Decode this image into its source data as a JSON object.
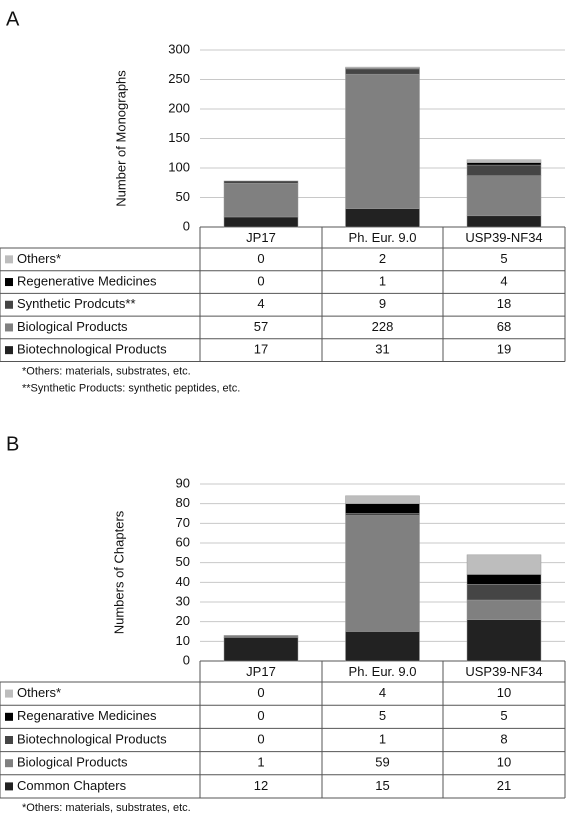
{
  "chart_data": [
    {
      "type": "bar",
      "stacked": true,
      "panel": "A",
      "ylabel": "Number  of Monographs",
      "categories": [
        "JP17",
        "Ph. Eur. 9.0",
        "USP39-NF34"
      ],
      "series": [
        {
          "name": "Biotechnological Products",
          "color": "#222222",
          "values": [
            17,
            31,
            19
          ]
        },
        {
          "name": "Biological Products",
          "color": "#808080",
          "values": [
            57,
            228,
            68
          ]
        },
        {
          "name": "Synthetic Prodcuts**",
          "color": "#454545",
          "values": [
            4,
            9,
            18
          ]
        },
        {
          "name": "Regenerative Medicines",
          "color": "#000000",
          "values": [
            0,
            1,
            4
          ]
        },
        {
          "name": "Others*",
          "color": "#bdbdbd",
          "values": [
            0,
            2,
            5
          ]
        }
      ],
      "ylim": [
        0,
        300
      ],
      "yticks": [
        0,
        50,
        100,
        150,
        200,
        250,
        300
      ],
      "grid": true,
      "footnotes": [
        "*Others: materials, substrates, etc.",
        "**Synthetic Products: synthetic peptides, etc."
      ]
    },
    {
      "type": "bar",
      "stacked": true,
      "panel": "B",
      "ylabel": "Numbers of Chapters",
      "categories": [
        "JP17",
        "Ph. Eur. 9.0",
        "USP39-NF34"
      ],
      "series": [
        {
          "name": "Common Chapters",
          "color": "#222222",
          "values": [
            12,
            15,
            21
          ]
        },
        {
          "name": "Biological Products",
          "color": "#808080",
          "values": [
            1,
            59,
            10
          ]
        },
        {
          "name": "Biotechnological Products",
          "color": "#454545",
          "values": [
            0,
            1,
            8
          ]
        },
        {
          "name": "Regenarative Medicines",
          "color": "#000000",
          "values": [
            0,
            5,
            5
          ]
        },
        {
          "name": "Others*",
          "color": "#bdbdbd",
          "values": [
            0,
            4,
            10
          ]
        }
      ],
      "ylim": [
        0,
        90
      ],
      "yticks": [
        0,
        10,
        20,
        30,
        40,
        50,
        60,
        70,
        80,
        90
      ],
      "grid": true,
      "footnotes": [
        "*Others: materials, substrates, etc."
      ]
    }
  ]
}
